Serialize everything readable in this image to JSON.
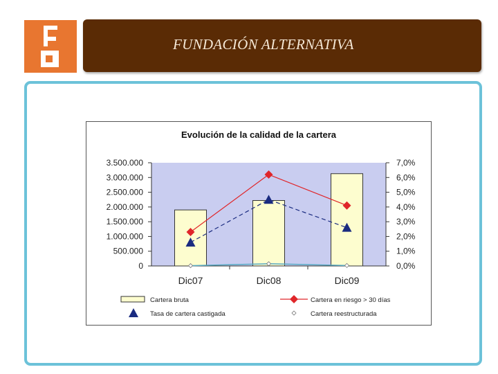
{
  "header": {
    "title": "FUNDACIÓN ALTERNATIVA",
    "logo_name": "fundacion-alternativa-logo"
  },
  "colors": {
    "logo_bg": "#e87630",
    "header_bg": "#5a2b05",
    "frame": "#6cc2d9",
    "plot_bg": "#c9cdf0",
    "bar_fill": "#fdfdcf",
    "risk_line": "#e0262a",
    "writeoff_line": "#1a2b80",
    "restructured": "#58aac4"
  },
  "chart_data": {
    "type": "bar",
    "title": "Evolución de la calidad de la cartera",
    "categories": [
      "Dic07",
      "Dic08",
      "Dic09"
    ],
    "grid": false,
    "legend_position": "bottom",
    "y_left": {
      "ylim": [
        0,
        3500000
      ],
      "ticks": [
        "0",
        "500.000",
        "1.000.000",
        "1.500.000",
        "2.000.000",
        "2.500.000",
        "3.000.000",
        "3.500.000"
      ]
    },
    "y_right": {
      "ylim": [
        0,
        7
      ],
      "ticks": [
        "0,0%",
        "1,0%",
        "2,0%",
        "3,0%",
        "4,0%",
        "5,0%",
        "6,0%",
        "7,0%"
      ]
    },
    "series": [
      {
        "name": "Cartera bruta",
        "type": "bar",
        "axis": "left",
        "values": [
          1900000,
          2220000,
          3130000
        ]
      },
      {
        "name": "Cartera en riesgo > 30 días",
        "type": "line",
        "axis": "right",
        "marker": "diamond",
        "dash": "solid",
        "values": [
          2.3,
          6.2,
          4.1
        ]
      },
      {
        "name": "Tasa de cartera castigada",
        "type": "line",
        "axis": "right",
        "marker": "triangle",
        "dash": "dashed",
        "values": [
          1.6,
          4.5,
          2.6
        ]
      },
      {
        "name": "Cartera reestructurada",
        "type": "line",
        "axis": "right",
        "marker": "open-diamond",
        "dash": "solid",
        "values": [
          0.02,
          0.15,
          0.03
        ]
      }
    ]
  }
}
